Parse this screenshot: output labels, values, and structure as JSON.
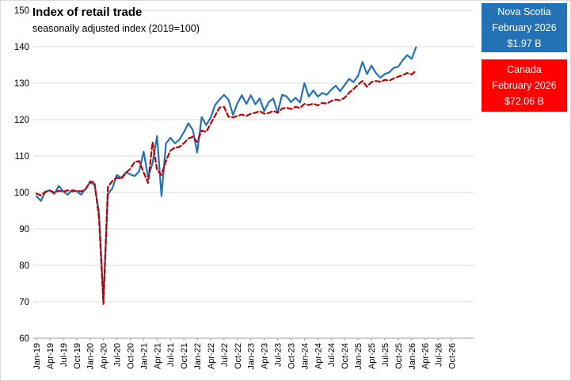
{
  "chart": {
    "title": "Index of retail trade",
    "subtitle": "seasonally adjusted index (2019=100)"
  },
  "legend": {
    "nova_scotia": {
      "region": "Nova Scotia",
      "period": "February 2026",
      "value": "$1.97 B",
      "color": "#2272B5"
    },
    "canada": {
      "region": "Canada",
      "period": "February 2026",
      "value": "$72.06 B",
      "color": "#FF0000"
    }
  },
  "colors": {
    "ns_line": "#2272B5",
    "canada_line": "#C00000",
    "gridline": "#D9D9D9",
    "axis": "#9E9E9E",
    "text": "#000000"
  },
  "chart_data": {
    "type": "line",
    "title": "Index of retail trade",
    "subtitle": "seasonally adjusted index (2019=100)",
    "grid": "horizontal",
    "legend_position": "right",
    "ylim": [
      60,
      150
    ],
    "y_ticks": [
      60,
      70,
      80,
      90,
      100,
      110,
      120,
      130,
      140,
      150
    ],
    "x_axis_span": [
      "Jan-19",
      "Dec-26"
    ],
    "x_tick_labels": [
      "Jan-19",
      "Apr-19",
      "Jul-19",
      "Oct-19",
      "Jan-20",
      "Apr-20",
      "Jul-20",
      "Oct-20",
      "Jan-21",
      "Apr-21",
      "Jul-21",
      "Oct-21",
      "Jan-22",
      "Apr-22",
      "Jul-22",
      "Oct-22",
      "Jan-23",
      "Apr-23",
      "Jul-23",
      "Oct-23",
      "Jan-24",
      "Apr-24",
      "Jul-24",
      "Oct-24",
      "Jan-25",
      "Apr-25",
      "Jul-25",
      "Oct-25",
      "Jan-26",
      "Apr-26",
      "Jul-26",
      "Oct-26"
    ],
    "x": [
      "Jan-19",
      "Feb-19",
      "Mar-19",
      "Apr-19",
      "May-19",
      "Jun-19",
      "Jul-19",
      "Aug-19",
      "Sep-19",
      "Oct-19",
      "Nov-19",
      "Dec-19",
      "Jan-20",
      "Feb-20",
      "Mar-20",
      "Apr-20",
      "May-20",
      "Jun-20",
      "Jul-20",
      "Aug-20",
      "Sep-20",
      "Oct-20",
      "Nov-20",
      "Dec-20",
      "Jan-21",
      "Feb-21",
      "Mar-21",
      "Apr-21",
      "May-21",
      "Jun-21",
      "Jul-21",
      "Aug-21",
      "Sep-21",
      "Oct-21",
      "Nov-21",
      "Dec-21",
      "Jan-22",
      "Feb-22",
      "Mar-22",
      "Apr-22",
      "May-22",
      "Jun-22",
      "Jul-22",
      "Aug-22",
      "Sep-22",
      "Oct-22",
      "Nov-22",
      "Dec-22",
      "Jan-23",
      "Feb-23",
      "Mar-23",
      "Apr-23",
      "May-23",
      "Jun-23",
      "Jul-23",
      "Aug-23",
      "Sep-23",
      "Oct-23",
      "Nov-23",
      "Dec-23",
      "Jan-24",
      "Feb-24",
      "Mar-24",
      "Apr-24",
      "May-24",
      "Jun-24",
      "Jul-24",
      "Aug-24",
      "Sep-24",
      "Oct-24",
      "Nov-24",
      "Dec-24",
      "Jan-25",
      "Feb-25",
      "Mar-25",
      "Apr-25",
      "May-25",
      "Jun-25",
      "Jul-25",
      "Aug-25",
      "Sep-25",
      "Oct-25",
      "Nov-25",
      "Dec-25",
      "Jan-26",
      "Feb-26"
    ],
    "series": [
      {
        "name": "Nova Scotia",
        "color": "#2272B5",
        "style": "solid",
        "latest_label": "February 2026",
        "latest_value_text": "$1.97 B",
        "values": [
          99.0,
          97.7,
          100.2,
          100.6,
          99.6,
          101.8,
          100.3,
          99.4,
          100.7,
          100.3,
          99.4,
          101.0,
          102.7,
          102.2,
          94.5,
          70.2,
          99.5,
          101.2,
          104.8,
          104.0,
          105.5,
          105.0,
          104.5,
          105.8,
          111.2,
          104.2,
          108.0,
          115.5,
          99.0,
          113.5,
          115.0,
          113.5,
          114.5,
          116.5,
          119.0,
          117.2,
          111.0,
          120.7,
          118.5,
          120.5,
          124.0,
          125.5,
          126.8,
          125.5,
          121.3,
          124.5,
          126.7,
          124.3,
          126.7,
          124.2,
          125.8,
          122.3,
          124.8,
          125.8,
          122.0,
          126.8,
          126.4,
          124.8,
          126.0,
          124.7,
          130.0,
          126.3,
          128.0,
          126.3,
          127.3,
          126.8,
          128.2,
          129.3,
          127.8,
          129.5,
          131.2,
          130.3,
          132.0,
          135.8,
          132.5,
          134.8,
          132.8,
          131.5,
          132.5,
          133.0,
          134.2,
          134.5,
          136.3,
          137.7,
          136.7,
          139.9
        ]
      },
      {
        "name": "Canada",
        "color": "#C00000",
        "style": "dashed",
        "latest_label": "February 2026",
        "latest_value_text": "$72.06 B",
        "values": [
          99.7,
          99.2,
          100.2,
          100.5,
          100.0,
          100.5,
          100.2,
          100.6,
          100.3,
          100.5,
          100.3,
          100.9,
          103.0,
          102.8,
          93.0,
          69.4,
          101.5,
          103.2,
          104.0,
          103.8,
          105.3,
          106.5,
          108.4,
          108.6,
          105.5,
          102.6,
          113.8,
          106.2,
          104.8,
          108.7,
          111.5,
          112.3,
          112.5,
          113.5,
          114.8,
          115.3,
          113.9,
          117.0,
          116.6,
          118.9,
          121.1,
          123.3,
          123.5,
          120.8,
          120.6,
          121.0,
          121.4,
          121.0,
          121.6,
          121.9,
          122.3,
          121.6,
          121.8,
          122.4,
          121.9,
          123.0,
          123.3,
          122.9,
          123.5,
          123.2,
          124.3,
          124.0,
          124.4,
          123.9,
          124.6,
          124.4,
          125.1,
          125.5,
          125.3,
          126.0,
          127.4,
          128.4,
          129.6,
          130.6,
          129.0,
          130.3,
          130.6,
          130.4,
          130.9,
          130.7,
          131.3,
          131.8,
          132.2,
          132.8,
          132.4,
          133.5
        ]
      }
    ]
  }
}
